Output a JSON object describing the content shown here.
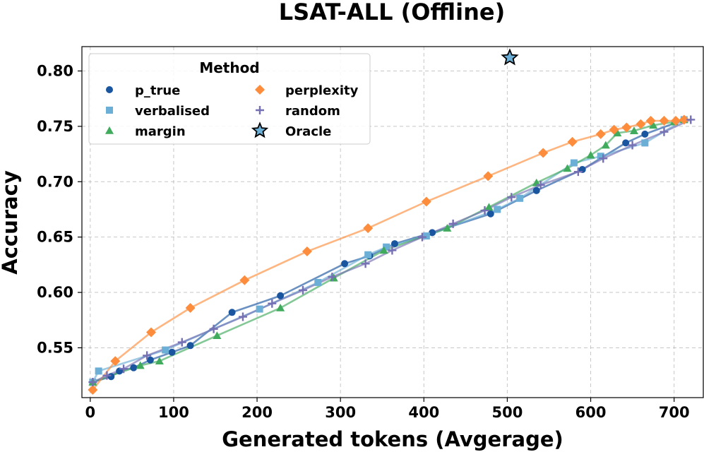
{
  "chart_data": {
    "type": "line",
    "title": "LSAT-ALL (Offline)",
    "xlabel": "Generated tokens (Avgerage)",
    "ylabel": "Accuracy",
    "xlim": [
      -10,
      735
    ],
    "ylim": [
      0.505,
      0.822
    ],
    "xticks": [
      0,
      100,
      200,
      300,
      400,
      500,
      600,
      700
    ],
    "yticks": [
      0.55,
      0.6,
      0.65,
      0.7,
      0.75,
      0.8
    ],
    "xtick_labels": [
      "0",
      "100",
      "200",
      "300",
      "400",
      "500",
      "600",
      "700"
    ],
    "ytick_labels": [
      "0.55",
      "0.60",
      "0.65",
      "0.70",
      "0.75",
      "0.80"
    ],
    "grid": true,
    "legend": {
      "title": "Method",
      "placement": "top-left"
    },
    "series": [
      {
        "name": "p_true",
        "color": "#1a56a0",
        "marker": "circle",
        "x": [
          3,
          25,
          35,
          52,
          72,
          98,
          120,
          170,
          228,
          305,
          335,
          365,
          410,
          480,
          535,
          590,
          642,
          665,
          712
        ],
        "y": [
          0.519,
          0.524,
          0.529,
          0.532,
          0.539,
          0.546,
          0.552,
          0.582,
          0.597,
          0.626,
          0.633,
          0.644,
          0.654,
          0.671,
          0.692,
          0.711,
          0.735,
          0.743,
          0.756
        ]
      },
      {
        "name": "verbalised",
        "color": "#6baed6",
        "marker": "square",
        "x": [
          3,
          10,
          90,
          203,
          273,
          333,
          355,
          403,
          488,
          515,
          580,
          612,
          665,
          712
        ],
        "y": [
          0.519,
          0.529,
          0.548,
          0.585,
          0.609,
          0.634,
          0.641,
          0.651,
          0.675,
          0.685,
          0.717,
          0.723,
          0.735,
          0.756
        ]
      },
      {
        "name": "margin",
        "color": "#41ab5d",
        "marker": "triangle",
        "x": [
          3,
          60,
          83,
          152,
          228,
          292,
          352,
          428,
          478,
          535,
          572,
          600,
          618,
          632,
          652,
          675,
          700,
          712
        ],
        "y": [
          0.519,
          0.534,
          0.538,
          0.561,
          0.586,
          0.613,
          0.638,
          0.658,
          0.677,
          0.699,
          0.712,
          0.724,
          0.733,
          0.744,
          0.746,
          0.751,
          0.754,
          0.756
        ]
      },
      {
        "name": "perplexity",
        "color": "#fd8d3c",
        "marker": "diamond",
        "x": [
          3,
          30,
          73,
          120,
          185,
          260,
          333,
          403,
          477,
          543,
          578,
          612,
          628,
          643,
          660,
          672,
          688,
          702,
          712
        ],
        "y": [
          0.512,
          0.538,
          0.564,
          0.586,
          0.611,
          0.637,
          0.658,
          0.682,
          0.705,
          0.726,
          0.736,
          0.743,
          0.747,
          0.749,
          0.752,
          0.755,
          0.755,
          0.755,
          0.756
        ]
      },
      {
        "name": "random",
        "color": "#7570b3",
        "marker": "plus",
        "x": [
          3,
          20,
          40,
          68,
          110,
          148,
          183,
          218,
          255,
          290,
          330,
          362,
          398,
          435,
          473,
          505,
          540,
          585,
          615,
          650,
          688,
          720
        ],
        "y": [
          0.519,
          0.525,
          0.531,
          0.543,
          0.555,
          0.567,
          0.578,
          0.59,
          0.602,
          0.614,
          0.626,
          0.638,
          0.65,
          0.662,
          0.674,
          0.686,
          0.697,
          0.709,
          0.721,
          0.733,
          0.745,
          0.756
        ]
      },
      {
        "name": "Oracle",
        "color": "#6baed6",
        "marker": "star",
        "x": [
          503
        ],
        "y": [
          0.812
        ]
      }
    ]
  }
}
